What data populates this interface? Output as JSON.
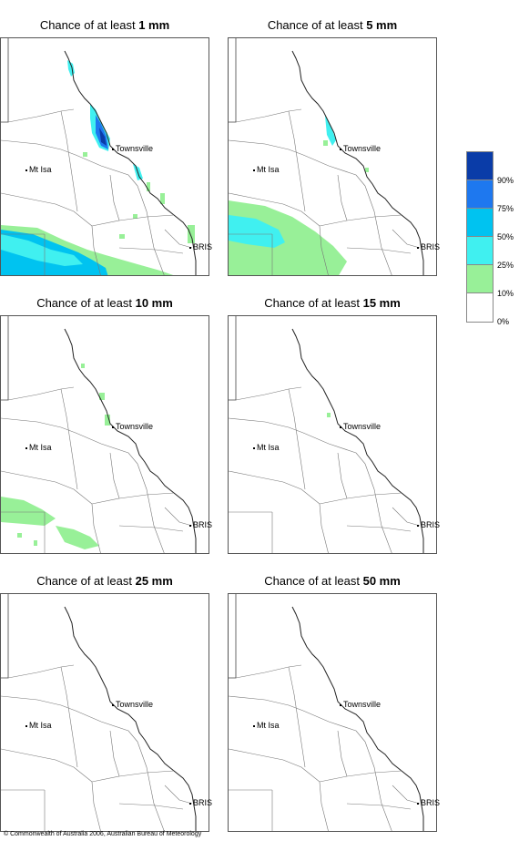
{
  "panels": [
    {
      "prefix": "Chance of at least ",
      "amount": "1 mm"
    },
    {
      "prefix": "Chance of at least ",
      "amount": "5 mm"
    },
    {
      "prefix": "Chance of at least ",
      "amount": "10 mm"
    },
    {
      "prefix": "Chance of at least ",
      "amount": "15 mm"
    },
    {
      "prefix": "Chance of at least ",
      "amount": "25 mm"
    },
    {
      "prefix": "Chance of at least ",
      "amount": "50 mm"
    }
  ],
  "cities": {
    "townsville": "Townsville",
    "mt_isa": "Mt Isa",
    "bris": "BRIS"
  },
  "legend": {
    "labels": [
      "90%",
      "75%",
      "50%",
      "25%",
      "10%",
      "0%"
    ],
    "colors": [
      "#0a3ca8",
      "#1e78ef",
      "#00c3f0",
      "#40f0f0",
      "#98f098",
      "#ffffff"
    ]
  },
  "copyright": "© Commonwealth of Australia 2006, Australian Bureau of Meteorology"
}
